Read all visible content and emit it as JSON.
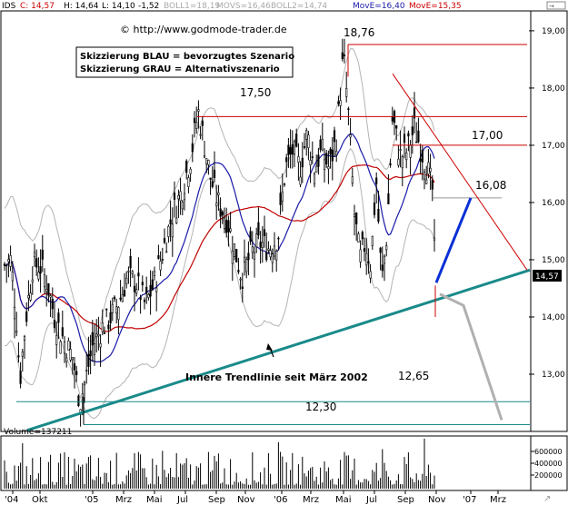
{
  "header": {
    "ticker": "IDS",
    "close": "C: 14,57",
    "high": "H: 14,64",
    "low": "L: 14,10",
    "change": "-1,52",
    "boll1": "BOLL1=18,19",
    "movs": "MOVS=16,46",
    "boll2": "BOLL2=14,74",
    "move1": "MovE=16,40",
    "move2": "MovE=15,35"
  },
  "copyright": "© http://www.godmode-trader.de",
  "legend": {
    "line1": "Skizzierung BLAU = bevorzugtes Szenario",
    "line2": "Skizzierung GRAU = Alternativszenario"
  },
  "annotations": {
    "a1876": "18,76",
    "a1750": "17,50",
    "a1700": "17,00",
    "a1608": "16,08",
    "a1265": "12,65",
    "a1230": "12,30",
    "trendline": "Innere Trendlinie seit März 2002"
  },
  "price_tag": "14,57",
  "volume_label": "Volume=137211",
  "colors": {
    "price": "#000000",
    "bollinger": "#b4b4b4",
    "ma_blue": "#1a1aa8",
    "ma_red": "#c00000",
    "trendline": "#1a8a8a",
    "resistance": "#cc0000",
    "scenario_blue": "#0a2fd6",
    "scenario_grey": "#b0b0b0",
    "axis_bg": "#ffffff"
  },
  "chart_data": {
    "type": "candlestick",
    "title": "",
    "ylim": [
      12.0,
      19.3
    ],
    "y_ticks": [
      "13,00",
      "14,00",
      "15,00",
      "16,00",
      "17,00",
      "18,00",
      "19,00"
    ],
    "y_tick_values": [
      13,
      14,
      15,
      16,
      17,
      18,
      19
    ],
    "x_ticks": [
      "'04",
      "Okt",
      "'05",
      "Mrz",
      "Mai",
      "Jul",
      "Sep",
      "Nov",
      "'06",
      "Mrz",
      "Mai",
      "Jul",
      "Sep",
      "Nov",
      "'07",
      "Mrz"
    ],
    "volume_ticks": [
      "600000",
      "400000",
      "200000"
    ],
    "volume_tick_values": [
      600000,
      400000,
      200000
    ],
    "last_close": 14.57,
    "resistance_levels": [
      18.76,
      17.5,
      17.0,
      16.08
    ],
    "support_levels": [
      12.65,
      12.3
    ],
    "scenario_blue_target": 16.08,
    "scenario_grey_target": 12.3
  }
}
